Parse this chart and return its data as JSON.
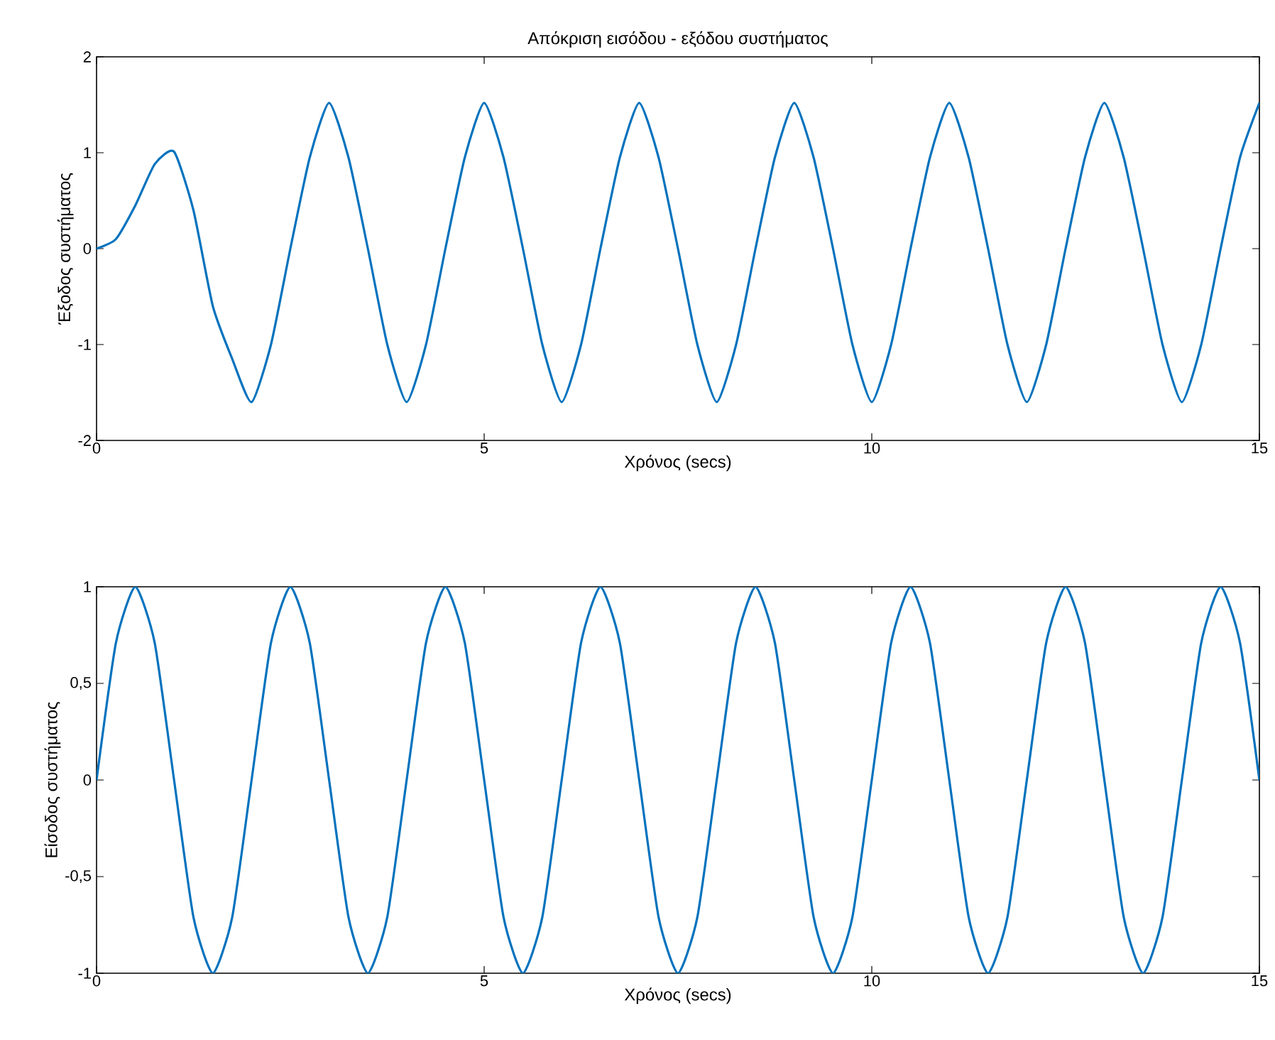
{
  "chart_data": [
    {
      "type": "line",
      "title": "Απόκριση εισόδου - εξόδου συστήματος",
      "xlabel": "Χρόνος (secs)",
      "ylabel": "Έξοδος συστήματος",
      "xlim": [
        0,
        15
      ],
      "ylim": [
        -2,
        2
      ],
      "xticks": [
        0,
        5,
        10,
        15
      ],
      "yticks": [
        -2,
        -1,
        0,
        1,
        2
      ],
      "series": [
        {
          "color": "#0072bd",
          "x": [
            0,
            0.25,
            0.5,
            0.75,
            1,
            1.25,
            1.5,
            1.75,
            2,
            2.25,
            2.5,
            2.75,
            3,
            3.25,
            3.5,
            3.75,
            4,
            4.25,
            4.5,
            4.75,
            5,
            5.25,
            5.5,
            5.75,
            6,
            6.25,
            6.5,
            6.75,
            7,
            7.25,
            7.5,
            7.75,
            8,
            8.25,
            8.5,
            8.75,
            9,
            9.25,
            9.5,
            9.75,
            10,
            10.25,
            10.5,
            10.75,
            11,
            11.25,
            11.5,
            11.75,
            12,
            12.25,
            12.5,
            12.75,
            13,
            13.25,
            13.5,
            13.75,
            14,
            14.25,
            14.5,
            14.75,
            15
          ],
          "values": [
            0,
            0.1,
            0.45,
            0.88,
            1.01,
            0.4,
            -0.6,
            -1.15,
            -1.6,
            -1.0,
            0,
            0.95,
            1.52,
            0.95,
            0,
            -1.0,
            -1.6,
            -1.0,
            0,
            0.95,
            1.52,
            0.95,
            0,
            -1.0,
            -1.6,
            -1.0,
            0,
            0.95,
            1.52,
            0.95,
            0,
            -1.0,
            -1.6,
            -1.0,
            0,
            0.95,
            1.52,
            0.95,
            0,
            -1.0,
            -1.6,
            -1.0,
            0,
            0.95,
            1.52,
            0.95,
            0,
            -1.0,
            -1.6,
            -1.0,
            0,
            0.95,
            1.52,
            0.95,
            0,
            -1.0,
            -1.6,
            -1.0,
            0,
            0.95,
            1.52
          ]
        }
      ]
    },
    {
      "type": "line",
      "xlabel": "Χρόνος (secs)",
      "ylabel": "Είσοδος συστήματος",
      "xlim": [
        0,
        15
      ],
      "ylim": [
        -1,
        1
      ],
      "xticks": [
        0,
        5,
        10,
        15
      ],
      "yticks": [
        -1,
        {
          "value": -0.5,
          "label": "-0,5"
        },
        0,
        {
          "value": 0.5,
          "label": "0,5"
        },
        1
      ],
      "series": [
        {
          "color": "#0072bd",
          "x": [
            0,
            0.25,
            0.5,
            0.75,
            1,
            1.25,
            1.5,
            1.75,
            2,
            2.25,
            2.5,
            2.75,
            3,
            3.25,
            3.5,
            3.75,
            4,
            4.25,
            4.5,
            4.75,
            5,
            5.25,
            5.5,
            5.75,
            6,
            6.25,
            6.5,
            6.75,
            7,
            7.25,
            7.5,
            7.75,
            8,
            8.25,
            8.5,
            8.75,
            9,
            9.25,
            9.5,
            9.75,
            10,
            10.25,
            10.5,
            10.75,
            11,
            11.25,
            11.5,
            11.75,
            12,
            12.25,
            12.5,
            12.75,
            13,
            13.25,
            13.5,
            13.75,
            14,
            14.25,
            14.5,
            14.75,
            15
          ],
          "values": [
            0,
            0.71,
            1,
            0.71,
            0,
            -0.71,
            -1,
            -0.71,
            0,
            0.71,
            1,
            0.71,
            0,
            -0.71,
            -1,
            -0.71,
            0,
            0.71,
            1,
            0.71,
            0,
            -0.71,
            -1,
            -0.71,
            0,
            0.71,
            1,
            0.71,
            0,
            -0.71,
            -1,
            -0.71,
            0,
            0.71,
            1,
            0.71,
            0,
            -0.71,
            -1,
            -0.71,
            0,
            0.71,
            1,
            0.71,
            0,
            -0.71,
            -1,
            -0.71,
            0,
            0.71,
            1,
            0.71,
            0,
            -0.71,
            -1,
            -0.71,
            0,
            0.71,
            1,
            0.71,
            0
          ]
        }
      ]
    }
  ]
}
